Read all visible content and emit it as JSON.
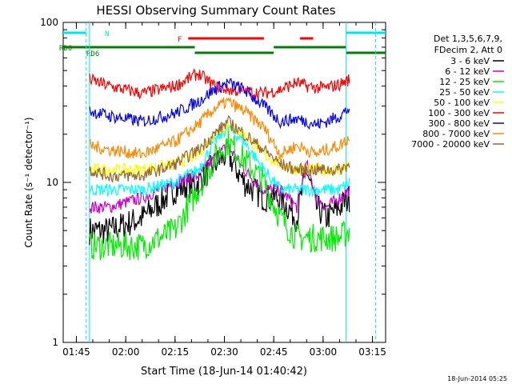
{
  "chart_data": {
    "type": "line",
    "title": "HESSI Observing Summary Count Rates",
    "xlabel": "Start Time (18-Jun-14 01:40:42)",
    "ylabel": "Count Rate (s⁻¹ detector⁻¹)",
    "y_scale": "log",
    "ylim": [
      1,
      100
    ],
    "xlim": [
      "01:41",
      "03:19"
    ],
    "x_ticks": [
      "01:45",
      "02:00",
      "02:15",
      "02:30",
      "02:45",
      "03:00",
      "03:15"
    ],
    "y_ticks": [
      "1",
      "10",
      "100"
    ],
    "footer_date": "18-Jun-2014 05:25",
    "legend_header": [
      "Det 1,3,5,6,7,9,",
      "FDecim 2, Att 0"
    ],
    "legend_placement": "right",
    "series": [
      {
        "name": "3 - 6 keV",
        "color": "#000000",
        "x": [
          "01:49",
          "01:55",
          "02:05",
          "02:15",
          "02:22",
          "02:27",
          "02:31",
          "02:36",
          "02:42",
          "02:47",
          "02:52",
          "02:55",
          "02:58",
          "03:01",
          "03:05",
          "03:08"
        ],
        "values": [
          5,
          5,
          6,
          9,
          10,
          13,
          15,
          10,
          8,
          8,
          6,
          12,
          7,
          6,
          7,
          8
        ]
      },
      {
        "name": "6 - 12 keV",
        "color": "#cc00cc",
        "x": [
          "01:49",
          "01:55",
          "02:05",
          "02:15",
          "02:22",
          "02:27",
          "02:31",
          "02:36",
          "02:42",
          "02:47",
          "02:52",
          "02:55",
          "02:58",
          "03:01",
          "03:05",
          "03:08"
        ],
        "values": [
          7,
          7,
          8,
          10,
          11,
          14,
          17,
          12,
          9,
          9,
          7,
          13,
          8,
          7,
          8,
          9
        ]
      },
      {
        "name": "12 - 25 keV",
        "color": "#00ee00",
        "x": [
          "01:49",
          "01:55",
          "02:05",
          "02:15",
          "02:22",
          "02:27",
          "02:31",
          "02:36",
          "02:42",
          "02:47",
          "02:52",
          "02:55",
          "02:58",
          "03:01",
          "03:05",
          "03:08"
        ],
        "values": [
          4,
          4,
          4,
          5,
          9,
          14,
          18,
          14,
          10,
          6,
          4.5,
          4.5,
          4.5,
          4.5,
          4.5,
          5
        ]
      },
      {
        "name": "25 - 50 keV",
        "color": "#00ffff",
        "x": [
          "01:49",
          "01:55",
          "02:05",
          "02:15",
          "02:22",
          "02:27",
          "02:31",
          "02:36",
          "02:42",
          "02:47",
          "02:52",
          "02:55",
          "02:58",
          "03:01",
          "03:05",
          "03:08"
        ],
        "values": [
          9,
          9,
          9,
          10,
          12,
          18,
          22,
          18,
          12,
          9,
          9,
          9,
          9,
          9,
          9,
          10
        ]
      },
      {
        "name": "50 - 100 keV",
        "color": "#ffff00",
        "x": [
          "01:49",
          "01:55",
          "02:05",
          "02:15",
          "02:22",
          "02:27",
          "02:31",
          "02:36",
          "02:42",
          "02:47",
          "02:52",
          "02:55",
          "02:58",
          "03:01",
          "03:05",
          "03:08"
        ],
        "values": [
          12,
          12,
          12,
          13,
          15,
          20,
          23,
          20,
          15,
          13,
          12,
          12,
          12,
          12,
          12,
          13
        ]
      },
      {
        "name": "100 - 300 keV",
        "color": "#ff0000",
        "x": [
          "01:49",
          "01:55",
          "02:05",
          "02:15",
          "02:22",
          "02:27",
          "02:31",
          "02:36",
          "02:42",
          "02:47",
          "02:52",
          "02:55",
          "02:58",
          "03:01",
          "03:05",
          "03:08"
        ],
        "values": [
          44,
          40,
          36,
          40,
          48,
          40,
          38,
          37,
          36,
          38,
          42,
          40,
          39,
          39,
          41,
          44
        ]
      },
      {
        "name": "300 - 800 keV",
        "color": "#0000ff",
        "x": [
          "01:49",
          "01:55",
          "02:05",
          "02:15",
          "02:22",
          "02:27",
          "02:31",
          "02:36",
          "02:42",
          "02:47",
          "02:52",
          "02:55",
          "02:58",
          "03:01",
          "03:05",
          "03:08"
        ],
        "values": [
          28,
          26,
          24,
          27,
          32,
          38,
          42,
          38,
          30,
          24,
          25,
          24,
          23,
          24,
          26,
          29
        ]
      },
      {
        "name": "800 - 7000 keV",
        "color": "#ff8800",
        "x": [
          "01:49",
          "01:55",
          "02:05",
          "02:15",
          "02:22",
          "02:27",
          "02:31",
          "02:36",
          "02:42",
          "02:47",
          "02:52",
          "02:55",
          "02:58",
          "03:01",
          "03:05",
          "03:08"
        ],
        "values": [
          17,
          16,
          15,
          18,
          23,
          29,
          32,
          28,
          22,
          15,
          17,
          16,
          15,
          16,
          17,
          19
        ]
      },
      {
        "name": "7000 - 20000 keV",
        "color": "#996633",
        "x": [
          "01:49",
          "01:55",
          "02:05",
          "02:15",
          "02:22",
          "02:27",
          "02:31",
          "02:36",
          "02:42",
          "02:47",
          "02:52",
          "02:55",
          "02:58",
          "03:01",
          "03:05",
          "03:08"
        ],
        "values": [
          12,
          11,
          11,
          13,
          16,
          20,
          24,
          20,
          16,
          13,
          12,
          12,
          12,
          12,
          12,
          13
        ]
      }
    ],
    "flags": [
      {
        "label": "N",
        "color": "#00e5e5",
        "segments": [
          [
            "01:41",
            "01:48"
          ],
          [
            "03:07",
            "03:19"
          ]
        ]
      },
      {
        "label": "F",
        "color": "#ff0000",
        "segments": [
          [
            "02:19",
            "02:42"
          ],
          [
            "02:53",
            "02:57"
          ]
        ]
      },
      {
        "label": "RD0",
        "color": "#008000",
        "segments": [
          [
            "01:41",
            "02:21"
          ],
          [
            "02:45",
            "03:07"
          ]
        ]
      },
      {
        "label": "RD6",
        "color": "#008000",
        "segments": [
          [
            "02:21",
            "02:45"
          ],
          [
            "03:07",
            "03:19"
          ]
        ]
      }
    ],
    "vertical_lines": [
      {
        "color": "#00e5e5",
        "style": "solid",
        "x": "01:49"
      },
      {
        "color": "#00e5e5",
        "style": "dashed",
        "x": "01:48"
      },
      {
        "color": "#00e5e5",
        "style": "solid",
        "x": "03:07"
      },
      {
        "color": "#00e5e5",
        "style": "dashed",
        "x": "03:16"
      }
    ]
  }
}
